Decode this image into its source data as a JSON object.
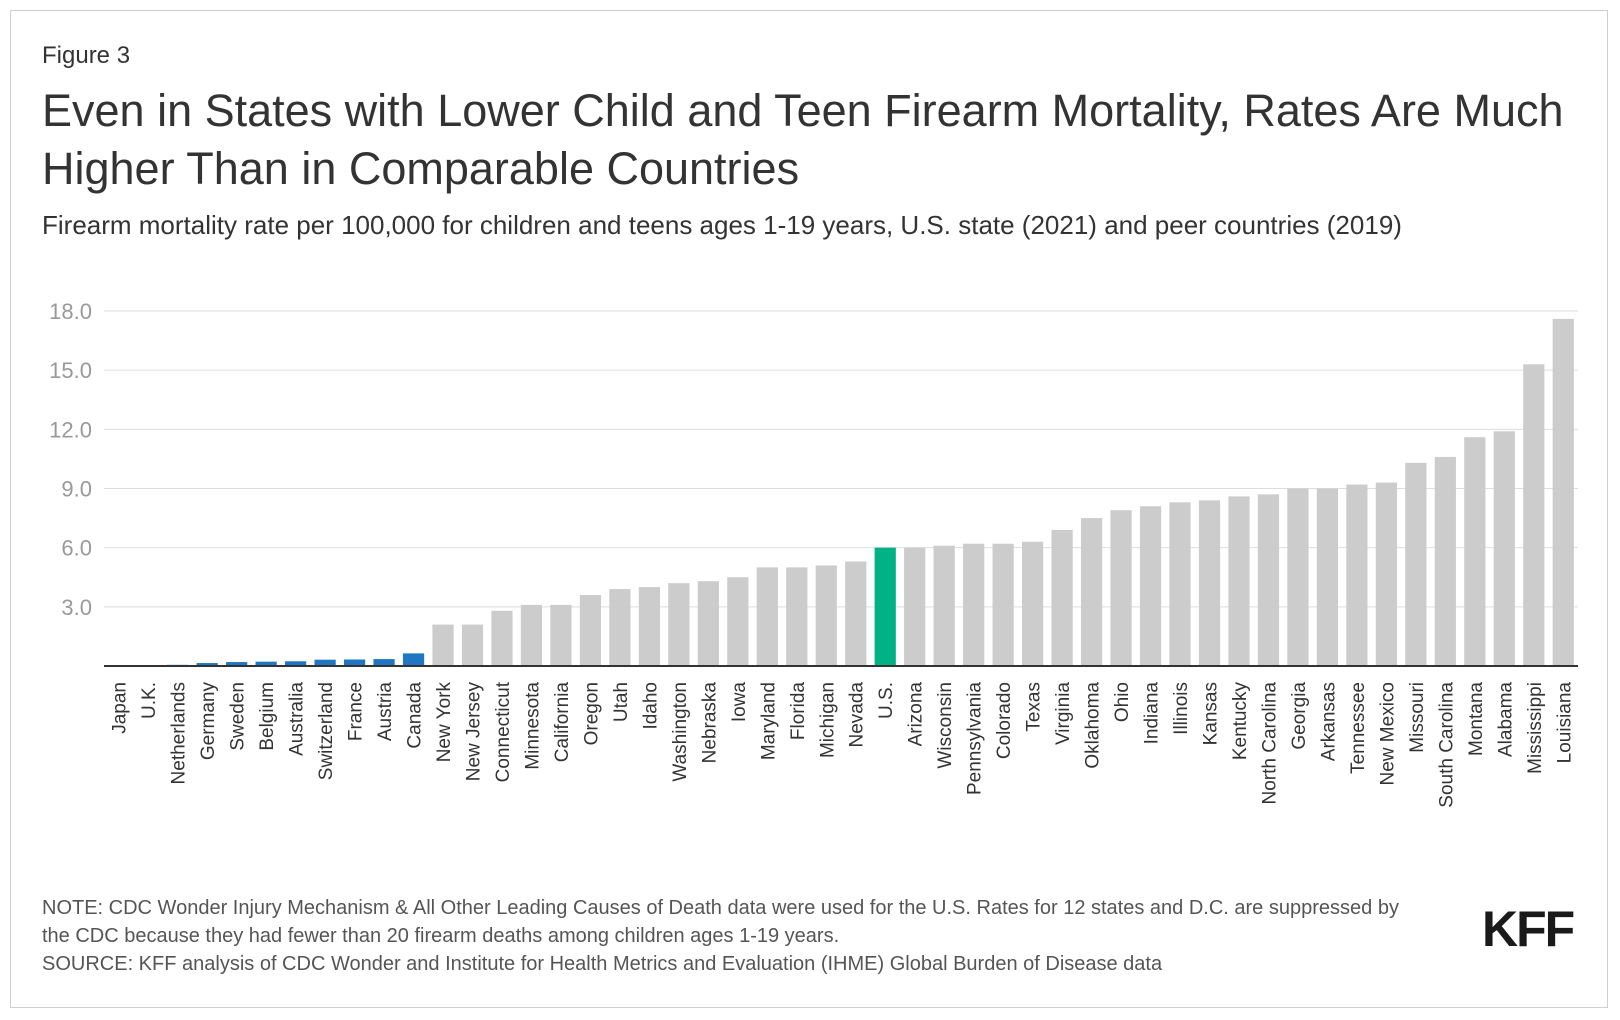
{
  "figure_label": "Figure 3",
  "title": "Even in States with Lower Child and Teen Firearm Mortality, Rates Are Much Higher Than in Comparable Countries",
  "subtitle": "Firearm mortality rate per 100,000 for children and teens ages 1-19 years, U.S. state (2021) and peer countries (2019)",
  "notes": {
    "note": "NOTE: CDC Wonder Injury Mechanism & All Other Leading Causes of Death data were used for the U.S. Rates for 12 states and D.C. are suppressed by the CDC because they had fewer than 20 firearm deaths among children ages 1-19 years.",
    "source": "SOURCE: KFF analysis of CDC Wonder and Institute for Health Metrics and Evaluation (IHME) Global Burden of Disease data"
  },
  "logo_text": "KFF",
  "colors": {
    "country": "#1f77c4",
    "us": "#00b386",
    "state": "#cccccc",
    "grid": "#dddddd",
    "axis": "#333333",
    "tick": "#999999"
  },
  "chart_data": {
    "type": "bar",
    "title": "Even in States with Lower Child and Teen Firearm Mortality, Rates Are Much Higher Than in Comparable Countries",
    "xlabel": "",
    "ylabel": "",
    "ylim": [
      0,
      18
    ],
    "yticks": [
      3.0,
      6.0,
      9.0,
      12.0,
      15.0,
      18.0
    ],
    "ytick_labels": [
      "3.0",
      "6.0",
      "9.0",
      "12.0",
      "15.0",
      "18.0"
    ],
    "grid": true,
    "categories": [
      "Japan",
      "U.K.",
      "Netherlands",
      "Germany",
      "Sweden",
      "Belgium",
      "Australia",
      "Switzerland",
      "France",
      "Austria",
      "Canada",
      "New York",
      "New Jersey",
      "Connecticut",
      "Minnesota",
      "California",
      "Oregon",
      "Utah",
      "Idaho",
      "Washington",
      "Nebraska",
      "Iowa",
      "Maryland",
      "Florida",
      "Michigan",
      "Nevada",
      "U.S.",
      "Arizona",
      "Wisconsin",
      "Pennsylvania",
      "Colorado",
      "Texas",
      "Virginia",
      "Oklahoma",
      "Ohio",
      "Indiana",
      "Illinois",
      "Kansas",
      "Kentucky",
      "North Carolina",
      "Georgia",
      "Arkansas",
      "Tennessee",
      "New Mexico",
      "Missouri",
      "South Carolina",
      "Montana",
      "Alabama",
      "Mississippi",
      "Louisiana"
    ],
    "values": [
      0.02,
      0.03,
      0.06,
      0.15,
      0.2,
      0.22,
      0.24,
      0.32,
      0.33,
      0.35,
      0.64,
      2.1,
      2.1,
      2.8,
      3.1,
      3.1,
      3.6,
      3.9,
      4.0,
      4.2,
      4.3,
      4.5,
      5.0,
      5.0,
      5.1,
      5.3,
      6.0,
      6.0,
      6.1,
      6.2,
      6.2,
      6.3,
      6.9,
      7.5,
      7.9,
      8.1,
      8.3,
      8.4,
      8.6,
      8.7,
      9.0,
      9.0,
      9.2,
      9.3,
      10.3,
      10.6,
      11.6,
      11.9,
      15.3,
      17.6
    ],
    "groups": [
      "country",
      "country",
      "country",
      "country",
      "country",
      "country",
      "country",
      "country",
      "country",
      "country",
      "country",
      "state",
      "state",
      "state",
      "state",
      "state",
      "state",
      "state",
      "state",
      "state",
      "state",
      "state",
      "state",
      "state",
      "state",
      "state",
      "us",
      "state",
      "state",
      "state",
      "state",
      "state",
      "state",
      "state",
      "state",
      "state",
      "state",
      "state",
      "state",
      "state",
      "state",
      "state",
      "state",
      "state",
      "state",
      "state",
      "state",
      "state",
      "state",
      "state"
    ]
  }
}
